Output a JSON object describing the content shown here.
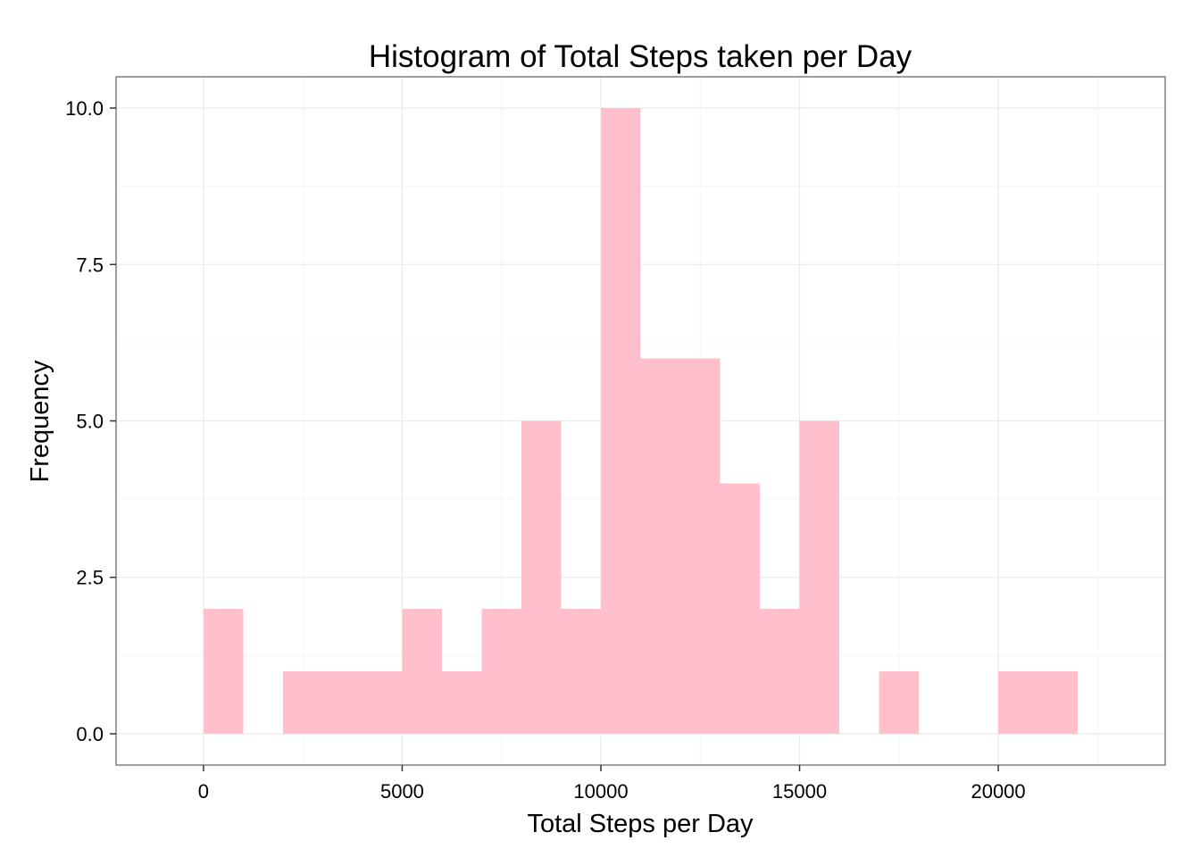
{
  "chart_data": {
    "type": "bar",
    "subtype": "histogram",
    "title": "Histogram of Total Steps taken per Day",
    "xlabel": "Total Steps per Day",
    "ylabel": "Frequency",
    "binwidth": 1000,
    "bins": [
      {
        "start": 0,
        "end": 1000,
        "count": 2
      },
      {
        "start": 1000,
        "end": 2000,
        "count": 0
      },
      {
        "start": 2000,
        "end": 3000,
        "count": 1
      },
      {
        "start": 3000,
        "end": 4000,
        "count": 1
      },
      {
        "start": 4000,
        "end": 5000,
        "count": 1
      },
      {
        "start": 5000,
        "end": 6000,
        "count": 2
      },
      {
        "start": 6000,
        "end": 7000,
        "count": 1
      },
      {
        "start": 7000,
        "end": 8000,
        "count": 2
      },
      {
        "start": 8000,
        "end": 9000,
        "count": 5
      },
      {
        "start": 9000,
        "end": 10000,
        "count": 2
      },
      {
        "start": 10000,
        "end": 11000,
        "count": 10
      },
      {
        "start": 11000,
        "end": 12000,
        "count": 6
      },
      {
        "start": 12000,
        "end": 13000,
        "count": 6
      },
      {
        "start": 13000,
        "end": 14000,
        "count": 4
      },
      {
        "start": 14000,
        "end": 15000,
        "count": 2
      },
      {
        "start": 15000,
        "end": 16000,
        "count": 5
      },
      {
        "start": 16000,
        "end": 17000,
        "count": 0
      },
      {
        "start": 17000,
        "end": 18000,
        "count": 1
      },
      {
        "start": 18000,
        "end": 19000,
        "count": 0
      },
      {
        "start": 19000,
        "end": 20000,
        "count": 0
      },
      {
        "start": 20000,
        "end": 21000,
        "count": 1
      },
      {
        "start": 21000,
        "end": 22000,
        "count": 1
      }
    ],
    "xlim": [
      -2200,
      24200
    ],
    "ylim": [
      -0.5,
      10.5
    ],
    "xticks": [
      0,
      5000,
      10000,
      15000,
      20000
    ],
    "xtick_labels": [
      "0",
      "5000",
      "10000",
      "15000",
      "20000"
    ],
    "yticks": [
      0,
      2.5,
      5,
      7.5,
      10
    ],
    "ytick_labels": [
      "0.0",
      "2.5",
      "5.0",
      "7.5",
      "10.0"
    ],
    "grid": true,
    "legend": "none",
    "colors": {
      "bar_fill": "#FFC0CB",
      "background": "#FFFFFF",
      "grid_major": "#EBEBEB",
      "panel_border": "#7F7F7F"
    }
  }
}
